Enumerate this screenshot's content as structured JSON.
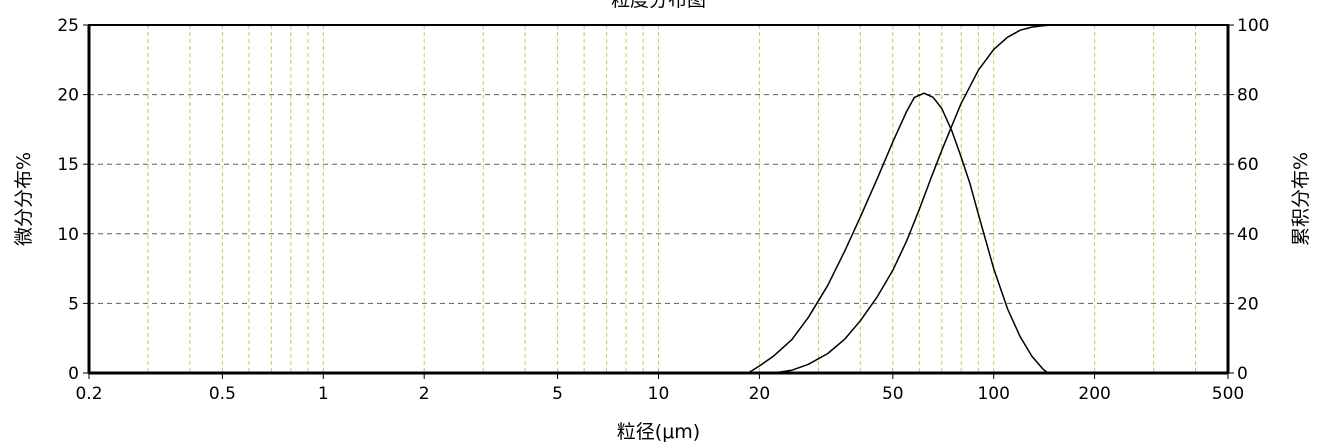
{
  "chart_data": {
    "type": "line",
    "title": "粒度分布图",
    "xlabel": "粒径(μm)",
    "ylabel": "微分分布%",
    "y2label": "累积分布%",
    "x_scale": "log",
    "xlim": [
      0.2,
      500
    ],
    "ylim": [
      0,
      25
    ],
    "y2lim": [
      0,
      100
    ],
    "x_ticks": [
      0.2,
      0.5,
      1,
      2,
      5,
      10,
      20,
      50,
      100,
      200,
      500
    ],
    "x_tick_labels": [
      "0.2",
      "0.5",
      "1",
      "2",
      "5",
      "10",
      "20",
      "50",
      "100",
      "200",
      "500"
    ],
    "y_ticks": [
      0,
      5,
      10,
      15,
      20,
      25
    ],
    "y_tick_labels": [
      "0",
      "5",
      "10",
      "15",
      "20",
      "25"
    ],
    "y2_ticks": [
      0,
      20,
      40,
      60,
      80,
      100
    ],
    "y2_tick_labels": [
      "0",
      "20",
      "40",
      "60",
      "80",
      "100"
    ],
    "x_minor_gridlines": [
      0.3,
      0.4,
      0.5,
      0.6,
      0.7,
      0.8,
      0.9,
      1,
      2,
      3,
      4,
      5,
      6,
      7,
      8,
      9,
      10,
      20,
      30,
      40,
      50,
      60,
      70,
      80,
      90,
      100,
      200,
      300,
      400
    ],
    "grid": true,
    "series": [
      {
        "axis": "left",
        "x": [
          18.5,
          20,
          22,
          25,
          28,
          32,
          36,
          40,
          45,
          50,
          55,
          58,
          62,
          66,
          70,
          75,
          80,
          85,
          90,
          100,
          110,
          120,
          130,
          140,
          145
        ],
        "values": [
          0,
          0.5,
          1.2,
          2.4,
          4,
          6.3,
          8.8,
          11.2,
          14,
          16.6,
          18.8,
          19.8,
          20.1,
          19.8,
          19,
          17.4,
          15.5,
          13.6,
          11.4,
          7.5,
          4.6,
          2.6,
          1.2,
          0.3,
          0
        ]
      },
      {
        "axis": "right",
        "x": [
          22,
          25,
          28,
          32,
          36,
          40,
          45,
          50,
          55,
          60,
          65,
          70,
          75,
          80,
          90,
          100,
          110,
          120,
          130,
          140,
          150,
          200,
          500
        ],
        "values": [
          0,
          0.8,
          2.5,
          5.6,
          9.8,
          15,
          22,
          29.5,
          38,
          47,
          56,
          64,
          71,
          77.5,
          87,
          93,
          96.5,
          98.5,
          99.4,
          99.8,
          100,
          100,
          100
        ]
      }
    ]
  }
}
